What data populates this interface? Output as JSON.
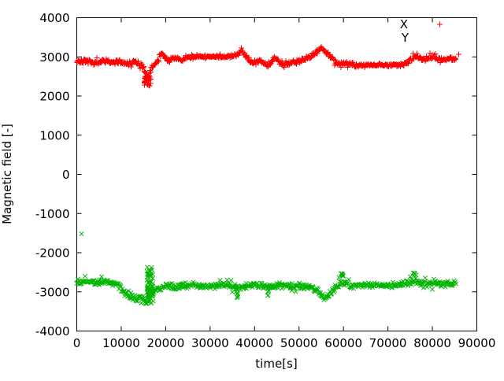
{
  "chart_data": {
    "type": "scatter",
    "title": "",
    "xlabel": "time[s]",
    "ylabel": "Magnetic field [-]",
    "xlim": [
      0,
      90000
    ],
    "ylim": [
      -4000,
      4000
    ],
    "xticks": [
      0,
      10000,
      20000,
      30000,
      40000,
      50000,
      60000,
      70000,
      80000,
      90000
    ],
    "yticks": [
      -4000,
      -3000,
      -2000,
      -1000,
      0,
      1000,
      2000,
      3000,
      4000
    ],
    "grid": false,
    "background": "#ffffff",
    "axis_color": "#000000",
    "legend": {
      "position": "top-right-inside",
      "entries": [
        {
          "label": "X",
          "marker": "+",
          "color": "#ff0000",
          "marker_visible": true
        },
        {
          "label": "Y",
          "marker": "x",
          "color": "#00b400",
          "marker_visible": false
        }
      ]
    },
    "series": [
      {
        "name": "X",
        "color": "#ff0000",
        "marker": "+",
        "sample_step_s": 130,
        "keypoints": [
          [
            0,
            2870,
            75
          ],
          [
            2000,
            2900,
            75
          ],
          [
            4000,
            2845,
            75
          ],
          [
            6000,
            2905,
            70
          ],
          [
            8000,
            2845,
            70
          ],
          [
            9500,
            2885,
            70
          ],
          [
            11000,
            2835,
            70
          ],
          [
            13000,
            2875,
            70
          ],
          [
            14500,
            2795,
            75
          ],
          [
            15300,
            2640,
            90
          ],
          [
            15900,
            2450,
            90
          ],
          [
            16700,
            2690,
            90
          ],
          [
            17500,
            2790,
            80
          ],
          [
            19100,
            3080,
            65
          ],
          [
            20500,
            2890,
            65
          ],
          [
            22100,
            3000,
            60
          ],
          [
            23500,
            2925,
            60
          ],
          [
            25300,
            3000,
            50
          ],
          [
            28000,
            3010,
            45
          ],
          [
            31000,
            3005,
            45
          ],
          [
            34000,
            3005,
            50
          ],
          [
            36300,
            3060,
            80
          ],
          [
            36900,
            3140,
            85
          ],
          [
            38100,
            3030,
            75
          ],
          [
            39600,
            2810,
            80
          ],
          [
            41300,
            2925,
            80
          ],
          [
            42800,
            2770,
            85
          ],
          [
            44500,
            2985,
            70
          ],
          [
            45800,
            2845,
            70
          ],
          [
            48400,
            2845,
            70
          ],
          [
            51000,
            2925,
            65
          ],
          [
            52900,
            3035,
            60
          ],
          [
            55100,
            3230,
            60
          ],
          [
            56900,
            3030,
            65
          ],
          [
            58700,
            2795,
            70
          ],
          [
            60800,
            2845,
            65
          ],
          [
            63400,
            2765,
            60
          ],
          [
            64400,
            2790,
            40
          ],
          [
            68000,
            2790,
            40
          ],
          [
            73200,
            2795,
            45
          ],
          [
            75100,
            2915,
            70
          ],
          [
            76400,
            3030,
            80
          ],
          [
            78100,
            2915,
            75
          ],
          [
            80000,
            3015,
            80
          ],
          [
            81700,
            2915,
            75
          ],
          [
            83500,
            2950,
            70
          ],
          [
            85300,
            2950,
            60
          ]
        ],
        "bursts": [
          {
            "t": 15950,
            "span": 1500,
            "vmin": 2260,
            "vmax": 2520,
            "count": 28
          }
        ],
        "outliers": [
          [
            85900,
            3070
          ]
        ]
      },
      {
        "name": "Y",
        "color": "#00b400",
        "marker": "x",
        "sample_step_s": 130,
        "keypoints": [
          [
            0,
            -2735,
            90
          ],
          [
            3000,
            -2735,
            90
          ],
          [
            6000,
            -2745,
            90
          ],
          [
            9000,
            -2790,
            95
          ],
          [
            10800,
            -3030,
            110
          ],
          [
            12600,
            -3150,
            120
          ],
          [
            14200,
            -3195,
            130
          ],
          [
            15600,
            -3205,
            130
          ],
          [
            16400,
            -3140,
            130
          ],
          [
            17200,
            -3000,
            120
          ],
          [
            18000,
            -2950,
            100
          ],
          [
            20000,
            -2865,
            95
          ],
          [
            23000,
            -2845,
            90
          ],
          [
            26000,
            -2845,
            90
          ],
          [
            29000,
            -2855,
            90
          ],
          [
            32000,
            -2845,
            90
          ],
          [
            35000,
            -2855,
            95
          ],
          [
            36200,
            -2905,
            115
          ],
          [
            37200,
            -2845,
            90
          ],
          [
            40000,
            -2845,
            90
          ],
          [
            43000,
            -2865,
            105
          ],
          [
            46000,
            -2845,
            90
          ],
          [
            49000,
            -2855,
            90
          ],
          [
            52000,
            -2855,
            95
          ],
          [
            54200,
            -2960,
            100
          ],
          [
            55800,
            -3190,
            95
          ],
          [
            57200,
            -3000,
            95
          ],
          [
            59400,
            -2775,
            115
          ],
          [
            61700,
            -2845,
            110
          ],
          [
            64000,
            -2835,
            80
          ],
          [
            67000,
            -2835,
            80
          ],
          [
            70000,
            -2835,
            80
          ],
          [
            73000,
            -2835,
            85
          ],
          [
            75800,
            -2705,
            115
          ],
          [
            77700,
            -2795,
            105
          ],
          [
            80300,
            -2765,
            100
          ],
          [
            82900,
            -2795,
            95
          ],
          [
            85300,
            -2795,
            90
          ]
        ],
        "bursts": [
          {
            "t": 16450,
            "span": 1400,
            "vmin": -3300,
            "vmax": -2360,
            "count": 70
          },
          {
            "t": 36000,
            "span": 500,
            "vmin": -3170,
            "vmax": -2950,
            "count": 7
          },
          {
            "t": 43200,
            "span": 600,
            "vmin": -3120,
            "vmax": -2950,
            "count": 6
          },
          {
            "t": 59600,
            "span": 900,
            "vmin": -2640,
            "vmax": -2520,
            "count": 7
          },
          {
            "t": 75900,
            "span": 900,
            "vmin": -2600,
            "vmax": -2500,
            "count": 7
          }
        ],
        "outliers": [
          [
            1060,
            -1520
          ]
        ]
      }
    ]
  }
}
